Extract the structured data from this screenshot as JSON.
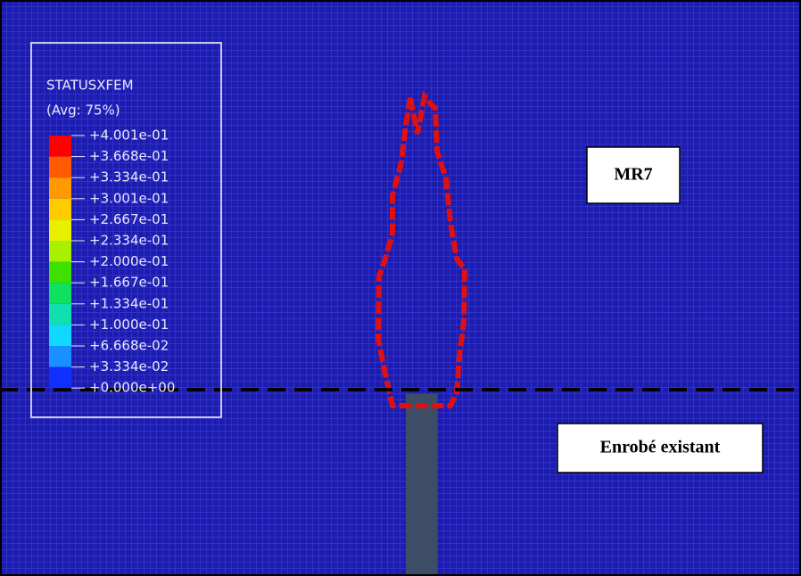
{
  "legend": {
    "title": "STATUSXFEM",
    "subtitle": "(Avg: 75%)",
    "labels": [
      "+4.001e-01",
      "+3.668e-01",
      "+3.334e-01",
      "+3.001e-01",
      "+2.667e-01",
      "+2.334e-01",
      "+2.000e-01",
      "+1.667e-01",
      "+1.334e-01",
      "+1.000e-01",
      "+6.668e-02",
      "+3.334e-02",
      "+0.000e+00"
    ]
  },
  "annotations": {
    "upper_layer": "MR7",
    "lower_layer": "Enrobé existant"
  }
}
